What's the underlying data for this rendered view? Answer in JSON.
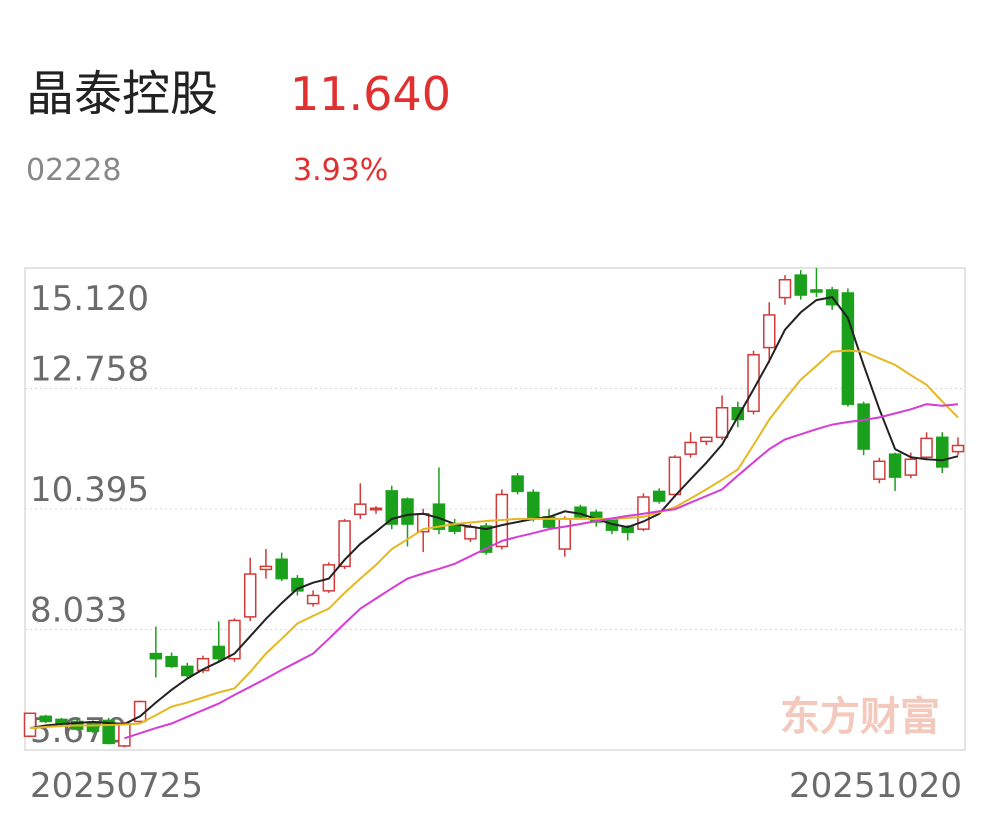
{
  "header": {
    "name": "晶泰控股",
    "price": "11.640",
    "code": "02228",
    "change": "3.93%"
  },
  "chart_data": {
    "type": "candlestick",
    "watermark": "东方财富",
    "categories": [
      "20250725",
      null,
      null,
      null,
      null,
      null,
      null,
      null,
      null,
      null,
      null,
      null,
      null,
      null,
      null,
      null,
      null,
      null,
      null,
      null,
      null,
      null,
      null,
      null,
      null,
      null,
      null,
      null,
      null,
      null,
      null,
      null,
      null,
      null,
      null,
      null,
      null,
      null,
      null,
      null,
      null,
      null,
      null,
      null,
      null,
      null,
      null,
      null,
      null,
      null,
      null,
      null,
      null,
      null,
      null,
      null,
      null,
      null,
      null,
      "20251020"
    ],
    "open": [
      5.94,
      6.33,
      6.27,
      6.23,
      6.19,
      6.25,
      5.75,
      6.23,
      7.56,
      7.5,
      7.31,
      7.23,
      7.7,
      7.46,
      8.28,
      9.21,
      9.41,
      9.03,
      8.54,
      8.79,
      9.27,
      10.29,
      10.39,
      10.75,
      10.59,
      9.95,
      10.49,
      10.1,
      9.81,
      10.06,
      9.66,
      11.04,
      10.72,
      10.24,
      9.61,
      10.43,
      10.33,
      10.18,
      10.04,
      10.0,
      10.74,
      10.68,
      11.47,
      11.72,
      11.8,
      12.38,
      12.31,
      13.56,
      14.54,
      14.98,
      14.69,
      14.69,
      14.63,
      12.45,
      10.98,
      11.47,
      11.06,
      11.41,
      11.8,
      11.52
    ],
    "high": [
      6.4,
      6.36,
      6.3,
      6.3,
      6.25,
      6.3,
      6.22,
      6.64,
      8.09,
      7.58,
      7.38,
      7.52,
      8.19,
      8.25,
      9.44,
      9.61,
      9.54,
      9.1,
      8.8,
      9.35,
      10.2,
      10.9,
      10.45,
      10.85,
      10.62,
      10.4,
      11.21,
      10.2,
      10.1,
      10.12,
      10.78,
      11.1,
      10.78,
      10.4,
      10.25,
      10.48,
      10.38,
      10.22,
      10.08,
      10.7,
      10.8,
      11.45,
      11.9,
      11.8,
      12.62,
      12.5,
      13.5,
      14.45,
      14.98,
      15.08,
      15.12,
      14.75,
      14.72,
      12.5,
      11.4,
      11.5,
      11.5,
      11.9,
      11.9,
      11.8
    ],
    "low": [
      5.92,
      6.2,
      6.15,
      6.05,
      6.0,
      5.78,
      5.72,
      6.2,
      7.09,
      7.28,
      7.08,
      7.18,
      7.42,
      7.4,
      8.2,
      9.03,
      8.98,
      8.7,
      8.48,
      8.75,
      9.22,
      10.2,
      10.3,
      10.0,
      9.66,
      9.55,
      9.9,
      9.9,
      9.75,
      9.5,
      9.6,
      10.68,
      10.15,
      10.0,
      9.46,
      10.2,
      10.05,
      9.9,
      9.78,
      9.96,
      10.5,
      10.62,
      11.4,
      11.65,
      11.75,
      12.0,
      12.25,
      13.26,
      14.4,
      14.5,
      14.55,
      14.3,
      12.4,
      11.45,
      10.9,
      10.75,
      11.0,
      11.35,
      11.1,
      11.45
    ],
    "close": [
      6.39,
      6.23,
      6.19,
      6.08,
      6.04,
      5.8,
      6.19,
      6.62,
      7.46,
      7.31,
      7.13,
      7.46,
      7.46,
      8.21,
      9.12,
      9.27,
      9.03,
      8.79,
      8.7,
      9.3,
      10.16,
      10.49,
      10.41,
      10.1,
      10.1,
      10.3,
      10.0,
      9.96,
      10.04,
      9.55,
      10.68,
      10.74,
      10.2,
      10.04,
      10.2,
      10.24,
      10.14,
      9.98,
      9.94,
      10.63,
      10.55,
      11.41,
      11.7,
      11.8,
      12.38,
      12.15,
      13.42,
      14.2,
      14.89,
      14.59,
      14.65,
      14.4,
      12.45,
      11.57,
      11.33,
      11.02,
      11.37,
      11.78,
      11.22,
      11.64
    ],
    "up_color": "#d23a3a",
    "down_color": "#1aa01a",
    "moving_averages": [
      {
        "color": "#222222",
        "values": [
          6.1,
          6.15,
          6.18,
          6.2,
          6.22,
          6.2,
          6.18,
          6.33,
          6.6,
          6.85,
          7.07,
          7.25,
          7.4,
          7.56,
          7.9,
          8.24,
          8.55,
          8.83,
          8.95,
          9.03,
          9.4,
          9.71,
          9.95,
          10.2,
          10.28,
          10.3,
          10.22,
          10.1,
          10.05,
          10.0,
          10.08,
          10.14,
          10.2,
          10.24,
          10.35,
          10.3,
          10.2,
          10.1,
          10.04,
          10.15,
          10.3,
          10.65,
          10.98,
          11.3,
          11.66,
          12.2,
          12.74,
          13.3,
          13.91,
          14.25,
          14.49,
          14.55,
          14.14,
          13.22,
          12.35,
          11.57,
          11.41,
          11.37,
          11.35,
          11.43
        ]
      },
      {
        "color": "#e6b820",
        "values": [
          6.1,
          6.12,
          6.14,
          6.15,
          6.15,
          6.16,
          6.17,
          6.19,
          6.35,
          6.52,
          6.6,
          6.7,
          6.8,
          6.88,
          7.2,
          7.56,
          7.85,
          8.15,
          8.3,
          8.44,
          8.75,
          9.03,
          9.3,
          9.61,
          9.8,
          10.0,
          10.05,
          10.1,
          10.13,
          10.16,
          10.18,
          10.2,
          10.2,
          10.2,
          10.2,
          10.2,
          10.2,
          10.2,
          10.22,
          10.24,
          10.33,
          10.43,
          10.6,
          10.78,
          10.97,
          11.17,
          11.65,
          12.15,
          12.55,
          12.93,
          13.2,
          13.48,
          13.5,
          13.48,
          13.35,
          13.22,
          13.02,
          12.83,
          12.5,
          12.19
        ]
      },
      {
        "color": "#d63cd6",
        "values": [
          null,
          null,
          null,
          null,
          null,
          null,
          5.9,
          6.0,
          6.1,
          6.19,
          6.32,
          6.45,
          6.58,
          6.75,
          6.91,
          7.07,
          7.24,
          7.4,
          7.56,
          7.85,
          8.15,
          8.44,
          8.64,
          8.84,
          9.03,
          9.13,
          9.22,
          9.32,
          9.47,
          9.62,
          9.77,
          9.85,
          9.92,
          10.0,
          10.05,
          10.1,
          10.16,
          10.21,
          10.26,
          10.3,
          10.35,
          10.39,
          10.52,
          10.65,
          10.78,
          11.05,
          11.31,
          11.57,
          11.76,
          11.86,
          11.96,
          12.05,
          12.1,
          12.14,
          12.19,
          12.27,
          12.35,
          12.45,
          12.42,
          12.45
        ]
      }
    ],
    "ylim": [
      5.67,
      15.12
    ],
    "yticks": [
      {
        "value": 5.67,
        "label": "5.670"
      },
      8.033,
      10.395,
      12.758,
      {
        "value": 15.12,
        "label": "15.120"
      }
    ],
    "grid": true
  }
}
